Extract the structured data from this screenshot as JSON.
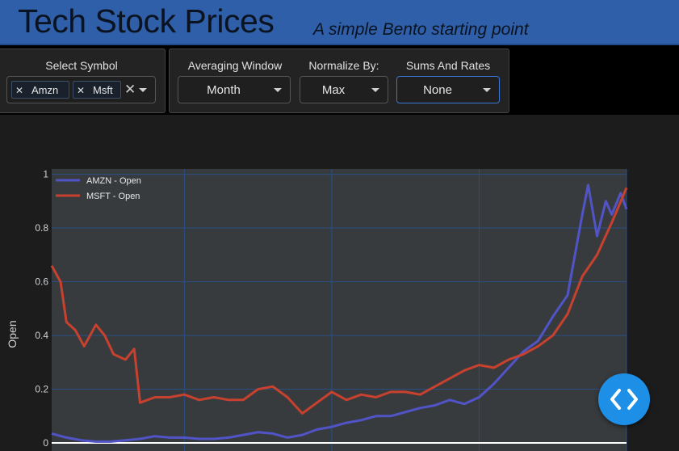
{
  "header": {
    "title": "Tech Stock Prices",
    "subtitle": "A simple Bento starting point"
  },
  "controls": {
    "symbol": {
      "label": "Select Symbol",
      "selected": [
        "Amzn",
        "Msft"
      ],
      "clear_icon": "close-icon",
      "remove_icon": "close-icon"
    },
    "averaging_window": {
      "label": "Averaging Window",
      "value": "Month"
    },
    "normalize_by": {
      "label": "Normalize By:",
      "value": "Max"
    },
    "sums_and_rates": {
      "label": "Sums And Rates",
      "value": "None"
    }
  },
  "fab": {
    "icon": "code-brackets-icon",
    "color": "#1e8fe6"
  },
  "chart_data": {
    "type": "line",
    "ylabel": "Open",
    "xlabel": "",
    "xlim": [
      2000.5,
      2020
    ],
    "ylim": [
      -0.03,
      1.02
    ],
    "xticks": [
      2005,
      2010,
      2015,
      2020
    ],
    "yticks": [
      0,
      0.2,
      0.4,
      0.6,
      0.8,
      1
    ],
    "ytick_labels": [
      "0",
      "0.2",
      "0.4",
      "0.6",
      "0.8",
      "1"
    ],
    "grid": true,
    "legend": "top-left",
    "colors": {
      "plot_bg": "#373b3e",
      "grid": "#2a4f86",
      "axis_text": "#cfd2d4"
    },
    "series": [
      {
        "name": "AMZN - Open",
        "color": "#5154c7",
        "x": [
          2000.5,
          2001.0,
          2001.5,
          2002.0,
          2002.5,
          2003.0,
          2003.5,
          2004.0,
          2004.5,
          2005.0,
          2005.5,
          2006.0,
          2006.5,
          2007.0,
          2007.5,
          2008.0,
          2008.5,
          2009.0,
          2009.5,
          2010.0,
          2010.5,
          2011.0,
          2011.5,
          2012.0,
          2012.5,
          2013.0,
          2013.5,
          2014.0,
          2014.5,
          2015.0,
          2015.5,
          2016.0,
          2016.5,
          2017.0,
          2017.5,
          2018.0,
          2018.5,
          2018.7,
          2019.0,
          2019.3,
          2019.5,
          2019.8,
          2020.0
        ],
        "y": [
          0.035,
          0.02,
          0.01,
          0.005,
          0.005,
          0.01,
          0.015,
          0.025,
          0.02,
          0.02,
          0.015,
          0.015,
          0.02,
          0.03,
          0.04,
          0.035,
          0.02,
          0.03,
          0.05,
          0.06,
          0.075,
          0.085,
          0.1,
          0.1,
          0.115,
          0.13,
          0.14,
          0.16,
          0.145,
          0.17,
          0.22,
          0.28,
          0.34,
          0.38,
          0.47,
          0.55,
          0.85,
          0.96,
          0.77,
          0.9,
          0.85,
          0.93,
          0.87
        ]
      },
      {
        "name": "MSFT - Open",
        "color": "#c8412f",
        "x": [
          2000.5,
          2000.8,
          2001.0,
          2001.3,
          2001.6,
          2002.0,
          2002.3,
          2002.6,
          2003.0,
          2003.3,
          2003.5,
          2004.0,
          2004.5,
          2005.0,
          2005.5,
          2006.0,
          2006.5,
          2007.0,
          2007.5,
          2008.0,
          2008.5,
          2009.0,
          2009.5,
          2010.0,
          2010.5,
          2011.0,
          2011.5,
          2012.0,
          2012.5,
          2013.0,
          2013.5,
          2014.0,
          2014.5,
          2015.0,
          2015.5,
          2016.0,
          2016.5,
          2017.0,
          2017.5,
          2018.0,
          2018.5,
          2019.0,
          2019.5,
          2020.0
        ],
        "y": [
          0.66,
          0.6,
          0.45,
          0.42,
          0.36,
          0.44,
          0.4,
          0.33,
          0.31,
          0.35,
          0.15,
          0.17,
          0.17,
          0.18,
          0.16,
          0.17,
          0.16,
          0.16,
          0.2,
          0.21,
          0.17,
          0.11,
          0.15,
          0.19,
          0.16,
          0.18,
          0.17,
          0.19,
          0.19,
          0.18,
          0.21,
          0.24,
          0.27,
          0.29,
          0.28,
          0.31,
          0.33,
          0.36,
          0.4,
          0.48,
          0.62,
          0.7,
          0.82,
          0.95
        ]
      }
    ]
  }
}
